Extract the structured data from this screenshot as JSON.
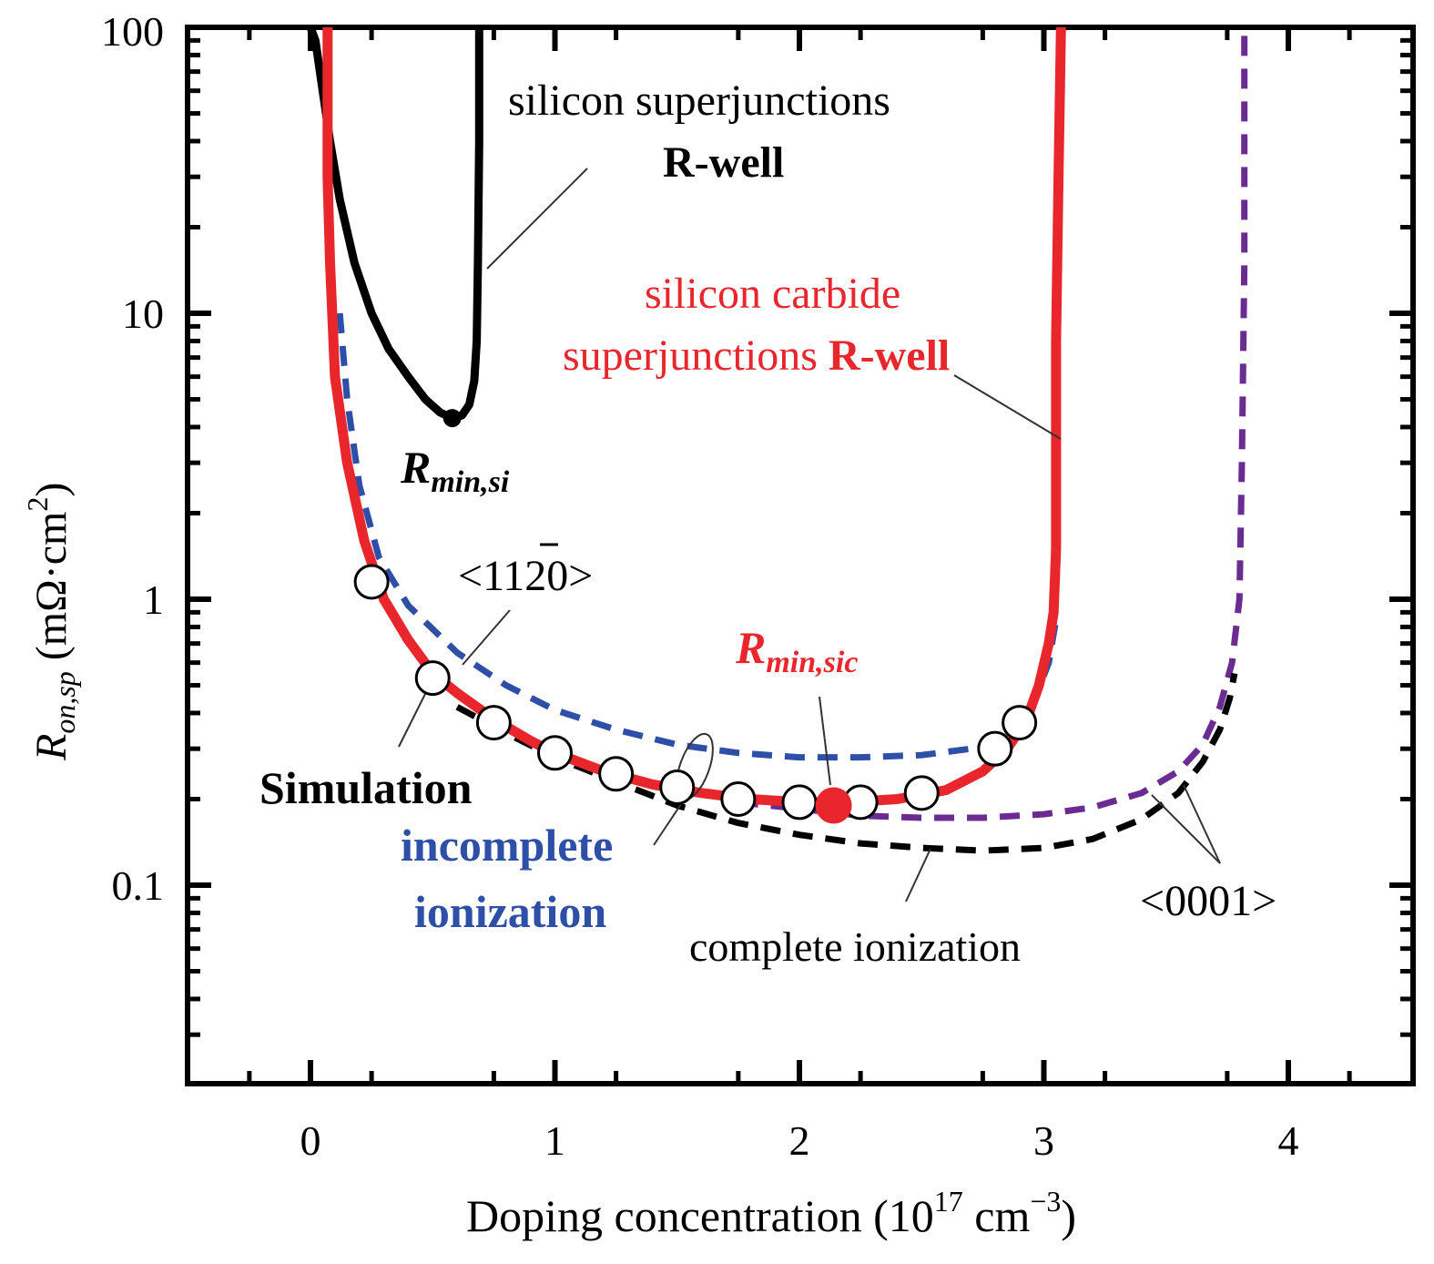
{
  "chart_data": {
    "type": "line",
    "title": "",
    "xlabel": {
      "main": "Doping concentration (10",
      "sup1": "17",
      "mid": " cm",
      "sup2": "−3",
      "end": ")"
    },
    "ylabel": {
      "R": "R",
      "sub": "on,sp",
      "unit": " (mΩ·cm",
      "sup": "2",
      "end": ")"
    },
    "xlim": [
      -0.5,
      4.5
    ],
    "ylim": [
      0.03,
      100
    ],
    "yscale": "log",
    "grid": false,
    "x_ticks": [
      {
        "value": 0,
        "label": "0"
      },
      {
        "value": 1,
        "label": "1"
      },
      {
        "value": 2,
        "label": "2"
      },
      {
        "value": 3,
        "label": "3"
      },
      {
        "value": 4,
        "label": "4"
      }
    ],
    "y_ticks": [
      {
        "value": 0.1,
        "label": "0.1"
      },
      {
        "value": 1,
        "label": "1"
      },
      {
        "value": 10,
        "label": "10"
      },
      {
        "value": 100,
        "label": "100"
      }
    ],
    "series": [
      {
        "name": "silicon superjunctions R-well",
        "color": "#000000",
        "style": "solid",
        "points": [
          [
            0.0,
            100
          ],
          [
            0.02,
            90
          ],
          [
            0.05,
            60
          ],
          [
            0.08,
            40
          ],
          [
            0.12,
            25
          ],
          [
            0.18,
            15
          ],
          [
            0.25,
            10
          ],
          [
            0.32,
            7.5
          ],
          [
            0.4,
            6
          ],
          [
            0.47,
            5
          ],
          [
            0.53,
            4.5
          ],
          [
            0.58,
            4.3
          ],
          [
            0.62,
            4.4
          ],
          [
            0.65,
            4.8
          ],
          [
            0.67,
            5.8
          ],
          [
            0.68,
            8
          ],
          [
            0.685,
            15
          ],
          [
            0.69,
            40
          ],
          [
            0.69,
            100
          ]
        ]
      },
      {
        "name": "silicon carbide superjunctions R-well",
        "color": "#e8262c",
        "style": "solid",
        "points": [
          [
            0.07,
            100
          ],
          [
            0.07,
            30
          ],
          [
            0.08,
            15
          ],
          [
            0.1,
            6
          ],
          [
            0.15,
            3
          ],
          [
            0.22,
            1.6
          ],
          [
            0.3,
            1.0
          ],
          [
            0.4,
            0.72
          ],
          [
            0.5,
            0.55
          ],
          [
            0.6,
            0.47
          ],
          [
            0.75,
            0.38
          ],
          [
            0.9,
            0.32
          ],
          [
            1.0,
            0.29
          ],
          [
            1.2,
            0.25
          ],
          [
            1.4,
            0.225
          ],
          [
            1.6,
            0.21
          ],
          [
            1.8,
            0.2
          ],
          [
            2.0,
            0.195
          ],
          [
            2.2,
            0.195
          ],
          [
            2.4,
            0.2
          ],
          [
            2.6,
            0.215
          ],
          [
            2.75,
            0.25
          ],
          [
            2.85,
            0.3
          ],
          [
            2.93,
            0.38
          ],
          [
            2.98,
            0.5
          ],
          [
            3.02,
            0.7
          ],
          [
            3.04,
            0.9
          ],
          [
            3.05,
            1.5
          ],
          [
            3.05,
            8
          ],
          [
            3.06,
            30
          ],
          [
            3.07,
            100
          ]
        ]
      },
      {
        "name": "incomplete ionization <11-20>",
        "color": "#2e4fa8",
        "style": "dashed",
        "points": [
          [
            0.12,
            10
          ],
          [
            0.15,
            5
          ],
          [
            0.2,
            2.5
          ],
          [
            0.28,
            1.4
          ],
          [
            0.4,
            0.95
          ],
          [
            0.6,
            0.65
          ],
          [
            0.8,
            0.5
          ],
          [
            1.0,
            0.41
          ],
          [
            1.25,
            0.35
          ],
          [
            1.5,
            0.31
          ],
          [
            1.75,
            0.29
          ],
          [
            2.0,
            0.28
          ],
          [
            2.25,
            0.28
          ],
          [
            2.5,
            0.285
          ],
          [
            2.7,
            0.3
          ],
          [
            2.85,
            0.34
          ],
          [
            2.95,
            0.42
          ],
          [
            3.02,
            0.6
          ],
          [
            3.05,
            0.85
          ]
        ]
      },
      {
        "name": "incomplete ionization <0001>",
        "color": "#6a2c91",
        "style": "dashed",
        "points": [
          [
            1.75,
            0.195
          ],
          [
            2.0,
            0.185
          ],
          [
            2.25,
            0.175
          ],
          [
            2.5,
            0.172
          ],
          [
            2.75,
            0.172
          ],
          [
            3.0,
            0.177
          ],
          [
            3.2,
            0.187
          ],
          [
            3.4,
            0.21
          ],
          [
            3.55,
            0.25
          ],
          [
            3.65,
            0.31
          ],
          [
            3.72,
            0.42
          ],
          [
            3.77,
            0.6
          ],
          [
            3.8,
            1.0
          ],
          [
            3.81,
            3
          ],
          [
            3.82,
            15
          ],
          [
            3.82,
            100
          ]
        ]
      },
      {
        "name": "complete ionization",
        "color": "#000000",
        "style": "dashed",
        "points": [
          [
            0.6,
            0.42
          ],
          [
            0.8,
            0.34
          ],
          [
            1.0,
            0.28
          ],
          [
            1.25,
            0.23
          ],
          [
            1.5,
            0.19
          ],
          [
            1.75,
            0.165
          ],
          [
            2.0,
            0.15
          ],
          [
            2.25,
            0.14
          ],
          [
            2.5,
            0.135
          ],
          [
            2.75,
            0.132
          ],
          [
            3.0,
            0.135
          ],
          [
            3.2,
            0.145
          ],
          [
            3.4,
            0.17
          ],
          [
            3.55,
            0.21
          ],
          [
            3.65,
            0.27
          ],
          [
            3.72,
            0.35
          ],
          [
            3.76,
            0.45
          ],
          [
            3.78,
            0.55
          ]
        ]
      }
    ],
    "simulation_points": {
      "name": "Simulation",
      "points": [
        [
          0.25,
          1.15
        ],
        [
          0.5,
          0.53
        ],
        [
          0.75,
          0.37
        ],
        [
          1.0,
          0.29
        ],
        [
          1.25,
          0.245
        ],
        [
          1.5,
          0.22
        ],
        [
          1.75,
          0.2
        ],
        [
          2.0,
          0.195
        ],
        [
          2.25,
          0.195
        ],
        [
          2.5,
          0.21
        ],
        [
          2.8,
          0.3
        ],
        [
          2.9,
          0.37
        ]
      ]
    },
    "minima": [
      {
        "name": "Rmin,si",
        "x": 0.58,
        "y": 4.3,
        "color": "#000000"
      },
      {
        "name": "Rmin,sic",
        "x": 2.14,
        "y": 0.19,
        "color": "#e8262c"
      }
    ],
    "annotations": {
      "si_line1": "silicon superjunctions",
      "si_line2": "R-well",
      "sic_line1": "silicon carbide",
      "sic_line2a": "superjunctions ",
      "sic_line2b": "R-well",
      "rmin_si_R": "R",
      "rmin_si_sub": "min,si",
      "rmin_sic_R": "R",
      "rmin_sic_sub": "min,sic",
      "dir_1120_a": "<11",
      "dir_1120_b": "2",
      "dir_1120_c": "0>",
      "simulation": "Simulation",
      "incomplete1": "incomplete",
      "incomplete2": "ionization",
      "complete": "complete ionization",
      "dir_0001": "<0001>"
    }
  }
}
